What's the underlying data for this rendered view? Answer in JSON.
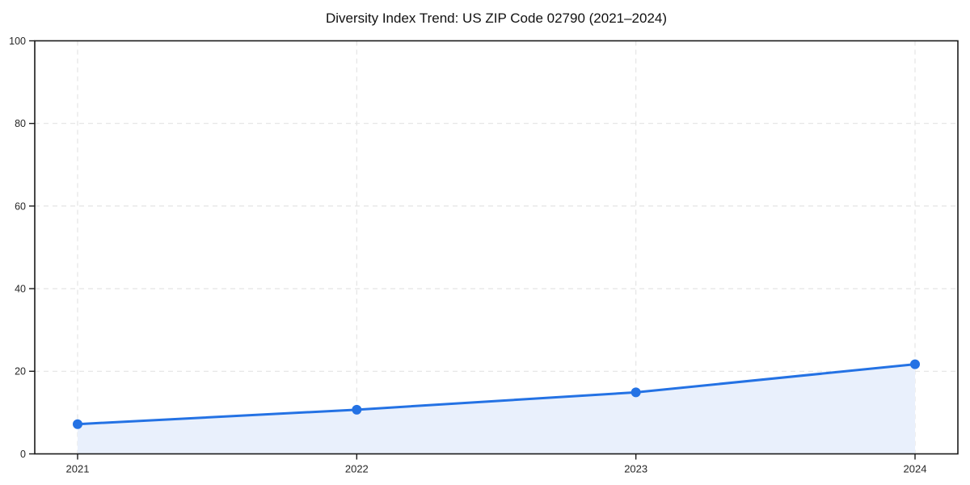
{
  "chart_data": {
    "type": "line",
    "title": "Diversity Index Trend: US ZIP Code 02790 (2021–2024)",
    "categories": [
      "2021",
      "2022",
      "2023",
      "2024"
    ],
    "series": [
      {
        "name": "Diversity Index",
        "values": [
          7.2,
          10.7,
          14.9,
          21.7
        ]
      }
    ],
    "xlabel": "",
    "ylabel": "",
    "ylim": [
      0,
      100
    ],
    "yticks": [
      0,
      20,
      40,
      60,
      80,
      100
    ],
    "grid": "dashed, both axes, light gray",
    "legend_position": "none",
    "area_fill": true,
    "marker": "circle",
    "colors": {
      "line": "#2472e4",
      "marker": "#2472e4",
      "area_fill": "#e9f0fc",
      "grid": "#e4e4e4",
      "axis": "#1a1a1a",
      "tick_label": "#262626",
      "title": "#111111",
      "background": "#ffffff"
    }
  }
}
